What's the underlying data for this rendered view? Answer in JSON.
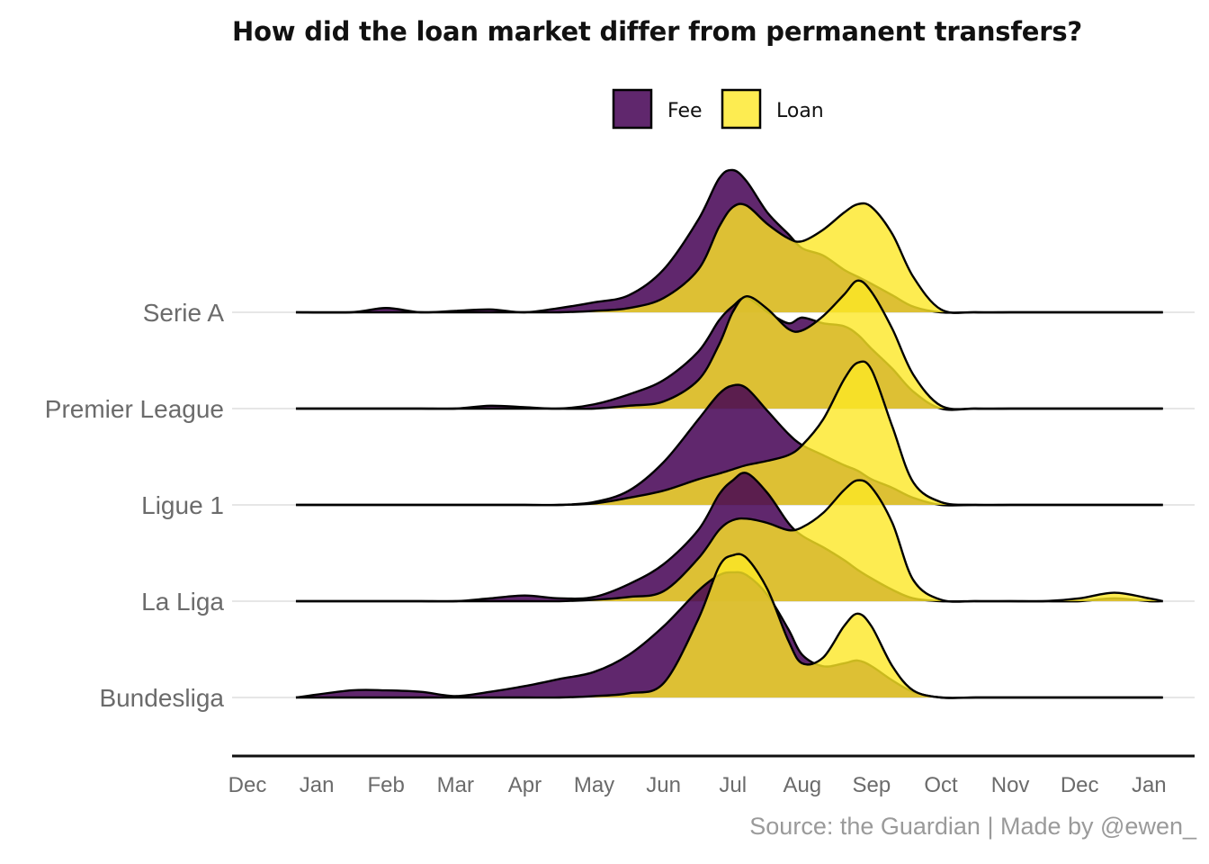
{
  "chart_data": {
    "type": "ridgeline",
    "title": "How did the loan market differ from permanent transfers?",
    "caption": "Source: the Guardian   |   Made by @ewen_",
    "x_ticks": [
      "Dec",
      "Jan",
      "Feb",
      "Mar",
      "Apr",
      "May",
      "Jun",
      "Jul",
      "Aug",
      "Sep",
      "Oct",
      "Nov",
      "Dec",
      "Jan"
    ],
    "x_unit": "month index (0 = Dec of prior year)",
    "legend": {
      "position": "top",
      "items": [
        {
          "name": "Fee",
          "color": "#440154"
        },
        {
          "name": "Loan",
          "color": "#fde725"
        }
      ]
    },
    "grid": "horizontal baselines only",
    "x": [
      0.7,
      1.5,
      2.0,
      2.5,
      3.0,
      3.5,
      4.0,
      4.5,
      5.0,
      5.5,
      6.0,
      6.5,
      6.8,
      7.0,
      7.2,
      7.5,
      7.8,
      8.0,
      8.3,
      8.6,
      8.8,
      9.0,
      9.3,
      9.6,
      10.0,
      10.5,
      11.0,
      11.5,
      12.0,
      12.5,
      13.0,
      13.2
    ],
    "series": [
      {
        "league": "Serie A",
        "fee": [
          0,
          0,
          0.03,
          0,
          0.01,
          0.02,
          0,
          0.03,
          0.07,
          0.12,
          0.3,
          0.65,
          0.94,
          1.0,
          0.92,
          0.7,
          0.55,
          0.45,
          0.4,
          0.3,
          0.25,
          0.2,
          0.12,
          0.04,
          0,
          0,
          0,
          0,
          0,
          0,
          0,
          0
        ],
        "loan": [
          0,
          0,
          0,
          0,
          0,
          0,
          0,
          0,
          0.01,
          0.03,
          0.1,
          0.3,
          0.6,
          0.74,
          0.75,
          0.62,
          0.52,
          0.5,
          0.58,
          0.7,
          0.76,
          0.74,
          0.55,
          0.25,
          0.02,
          0,
          0,
          0,
          0,
          0,
          0,
          0
        ]
      },
      {
        "league": "Premier League",
        "fee": [
          0,
          0,
          0,
          0,
          0,
          0.02,
          0.01,
          0,
          0.03,
          0.1,
          0.2,
          0.4,
          0.62,
          0.72,
          0.78,
          0.68,
          0.6,
          0.64,
          0.6,
          0.58,
          0.52,
          0.42,
          0.28,
          0.12,
          0,
          0,
          0,
          0,
          0,
          0,
          0,
          0
        ],
        "loan": [
          0,
          0,
          0,
          0,
          0,
          0,
          0,
          0,
          0,
          0.02,
          0.05,
          0.2,
          0.45,
          0.68,
          0.79,
          0.7,
          0.56,
          0.55,
          0.65,
          0.8,
          0.9,
          0.82,
          0.56,
          0.24,
          0.02,
          0,
          0,
          0,
          0,
          0,
          0,
          0
        ]
      },
      {
        "league": "Ligue 1",
        "fee": [
          0,
          0,
          0,
          0,
          0,
          0,
          0,
          0,
          0.02,
          0.1,
          0.3,
          0.6,
          0.78,
          0.84,
          0.82,
          0.66,
          0.5,
          0.42,
          0.35,
          0.28,
          0.24,
          0.18,
          0.12,
          0.05,
          0,
          0,
          0,
          0,
          0,
          0,
          0,
          0
        ],
        "loan": [
          0,
          0,
          0,
          0,
          0,
          0,
          0,
          0,
          0.01,
          0.05,
          0.1,
          0.18,
          0.22,
          0.25,
          0.28,
          0.31,
          0.35,
          0.42,
          0.6,
          0.88,
          1.0,
          0.95,
          0.55,
          0.16,
          0.02,
          0,
          0,
          0,
          0,
          0,
          0,
          0
        ]
      },
      {
        "league": "La Liga",
        "fee": [
          0,
          0,
          0,
          0,
          0,
          0.02,
          0.04,
          0.02,
          0.03,
          0.12,
          0.26,
          0.5,
          0.75,
          0.85,
          0.9,
          0.76,
          0.55,
          0.46,
          0.38,
          0.29,
          0.22,
          0.16,
          0.08,
          0.02,
          0,
          0,
          0,
          0,
          0,
          0.02,
          0,
          0
        ],
        "loan": [
          0,
          0,
          0,
          0,
          0,
          0,
          0,
          0,
          0.01,
          0.03,
          0.07,
          0.3,
          0.5,
          0.57,
          0.58,
          0.55,
          0.5,
          0.52,
          0.62,
          0.78,
          0.85,
          0.8,
          0.55,
          0.15,
          0.01,
          0,
          0,
          0,
          0.02,
          0.06,
          0.02,
          0
        ]
      },
      {
        "league": "Bundesliga",
        "fee": [
          0,
          0.05,
          0.05,
          0.04,
          0.01,
          0.04,
          0.08,
          0.13,
          0.18,
          0.3,
          0.5,
          0.75,
          0.86,
          0.88,
          0.86,
          0.72,
          0.48,
          0.3,
          0.22,
          0.24,
          0.26,
          0.22,
          0.12,
          0.04,
          0,
          0,
          0,
          0,
          0,
          0,
          0,
          0
        ],
        "loan": [
          0,
          0,
          0,
          0,
          0,
          0,
          0,
          0,
          0.01,
          0.03,
          0.1,
          0.55,
          0.92,
          1.0,
          0.98,
          0.76,
          0.4,
          0.24,
          0.28,
          0.5,
          0.59,
          0.5,
          0.22,
          0.05,
          0,
          0,
          0,
          0,
          0,
          0,
          0,
          0
        ]
      }
    ]
  }
}
